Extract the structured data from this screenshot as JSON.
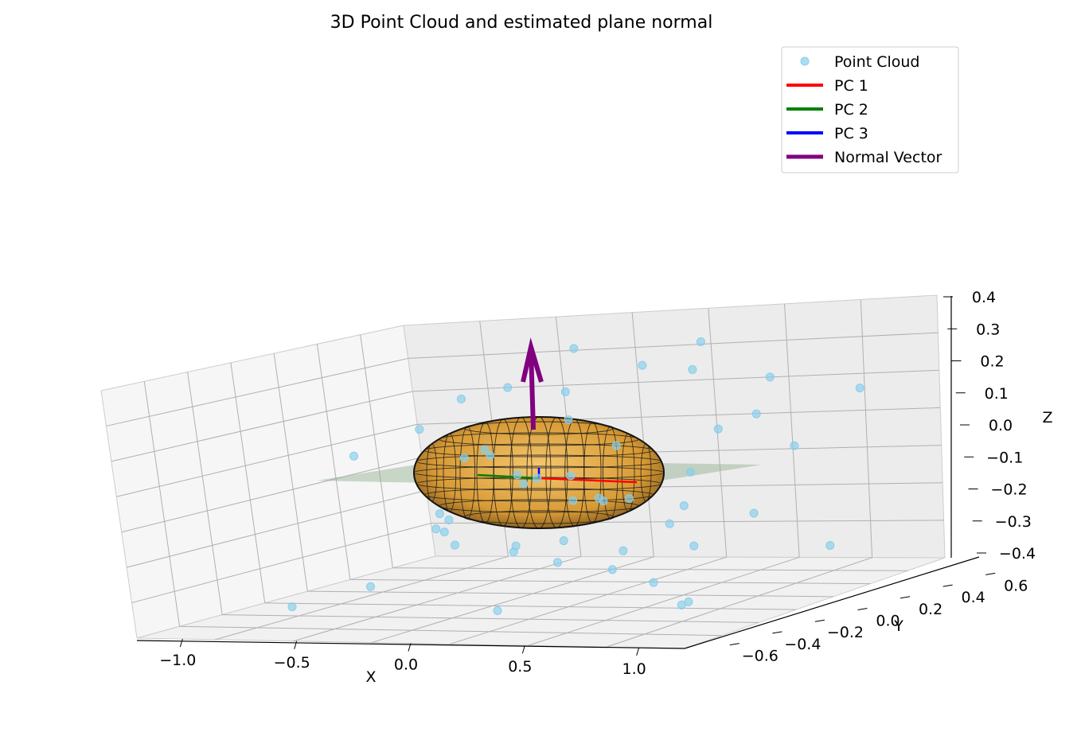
{
  "chart_data": {
    "type": "scatter",
    "title": "3D Point Cloud and estimated plane normal",
    "xlabel": "X",
    "ylabel": "Y",
    "zlabel": "Z",
    "xlim": [
      -1.2,
      1.2
    ],
    "ylim": [
      -0.7,
      0.7
    ],
    "zlim": [
      -0.4,
      0.4
    ],
    "x_ticks": [
      "−1.0",
      "−0.5",
      "0.0",
      "0.5",
      "1.0"
    ],
    "y_ticks": [
      "−0.6",
      "−0.4",
      "−0.2",
      "0.0",
      "0.2",
      "0.4",
      "0.6"
    ],
    "z_ticks": [
      "−0.4",
      "−0.3",
      "−0.2",
      "−0.1",
      "0.0",
      "0.1",
      "0.2",
      "0.3",
      "0.4"
    ],
    "grid": true,
    "legend_position": "top-right",
    "colors": {
      "point_cloud": "#87ceeb",
      "pc1": "#ff0000",
      "pc2": "#008000",
      "pc3": "#0000ff",
      "normal_vector": "#800080",
      "ellipsoid": "#e8a93a",
      "plane": "#8fb08f"
    },
    "series": [
      {
        "name": "Point Cloud",
        "kind": "scatter",
        "points": [
          [
            -0.95,
            0.05,
            0.05
          ],
          [
            -0.85,
            0.25,
            0.1
          ],
          [
            -0.7,
            0.3,
            0.0
          ],
          [
            -0.6,
            0.1,
            -0.2
          ],
          [
            -0.55,
            -0.3,
            -0.3
          ],
          [
            -0.45,
            -0.1,
            -0.15
          ],
          [
            -0.5,
            0.6,
            0.3
          ],
          [
            -0.35,
            0.4,
            0.2
          ],
          [
            -0.4,
            0.1,
            0.05
          ],
          [
            -0.3,
            -0.2,
            -0.1
          ],
          [
            -0.25,
            0.05,
            -0.25
          ],
          [
            -0.2,
            -0.35,
            -0.05
          ],
          [
            -0.15,
            0.2,
            0.15
          ],
          [
            -0.1,
            -0.1,
            -0.2
          ],
          [
            -0.05,
            0.35,
            -0.3
          ],
          [
            0.0,
            -0.2,
            0.05
          ],
          [
            0.05,
            0.15,
            -0.1
          ],
          [
            0.1,
            -0.4,
            -0.35
          ],
          [
            0.15,
            0.5,
            0.35
          ],
          [
            0.2,
            0.05,
            0.1
          ],
          [
            0.25,
            -0.25,
            -0.15
          ],
          [
            0.3,
            0.3,
            0.3
          ],
          [
            0.35,
            -0.05,
            -0.05
          ],
          [
            0.4,
            0.2,
            -0.25
          ],
          [
            0.45,
            -0.3,
            0.0
          ],
          [
            0.5,
            0.45,
            0.25
          ],
          [
            0.55,
            -0.15,
            -0.3
          ],
          [
            0.6,
            0.1,
            0.15
          ],
          [
            0.65,
            -0.45,
            -0.2
          ],
          [
            0.7,
            0.35,
            0.05
          ],
          [
            0.75,
            -0.2,
            -0.35
          ],
          [
            0.8,
            0.55,
            0.2
          ],
          [
            0.85,
            0.0,
            -0.1
          ],
          [
            0.9,
            -0.35,
            0.1
          ],
          [
            0.95,
            0.25,
            -0.25
          ],
          [
            1.0,
            -0.5,
            -0.3
          ],
          [
            -0.8,
            -0.4,
            -0.35
          ],
          [
            -0.65,
            0.45,
            0.2
          ],
          [
            -0.2,
            0.6,
            0.25
          ],
          [
            0.1,
            -0.6,
            -0.1
          ],
          [
            0.3,
            0.6,
            0.1
          ],
          [
            0.55,
            -0.6,
            -0.15
          ],
          [
            -0.9,
            0.5,
            0.15
          ],
          [
            -0.1,
            0.0,
            0.0
          ],
          [
            0.0,
            0.05,
            0.0
          ],
          [
            0.15,
            -0.1,
            -0.05
          ],
          [
            -0.3,
            0.15,
            -0.05
          ],
          [
            0.45,
            0.1,
            -0.1
          ],
          [
            -0.05,
            -0.3,
            0.15
          ],
          [
            0.2,
            0.3,
            -0.2
          ]
        ]
      },
      {
        "name": "PC 1",
        "kind": "line",
        "color": "#ff0000"
      },
      {
        "name": "PC 2",
        "kind": "line",
        "color": "#008000"
      },
      {
        "name": "PC 3",
        "kind": "line",
        "color": "#0000ff"
      },
      {
        "name": "Normal Vector",
        "kind": "arrow",
        "color": "#800080",
        "from": [
          0.0,
          0.0,
          0.0
        ],
        "to": [
          0.0,
          0.0,
          0.35
        ]
      }
    ]
  }
}
